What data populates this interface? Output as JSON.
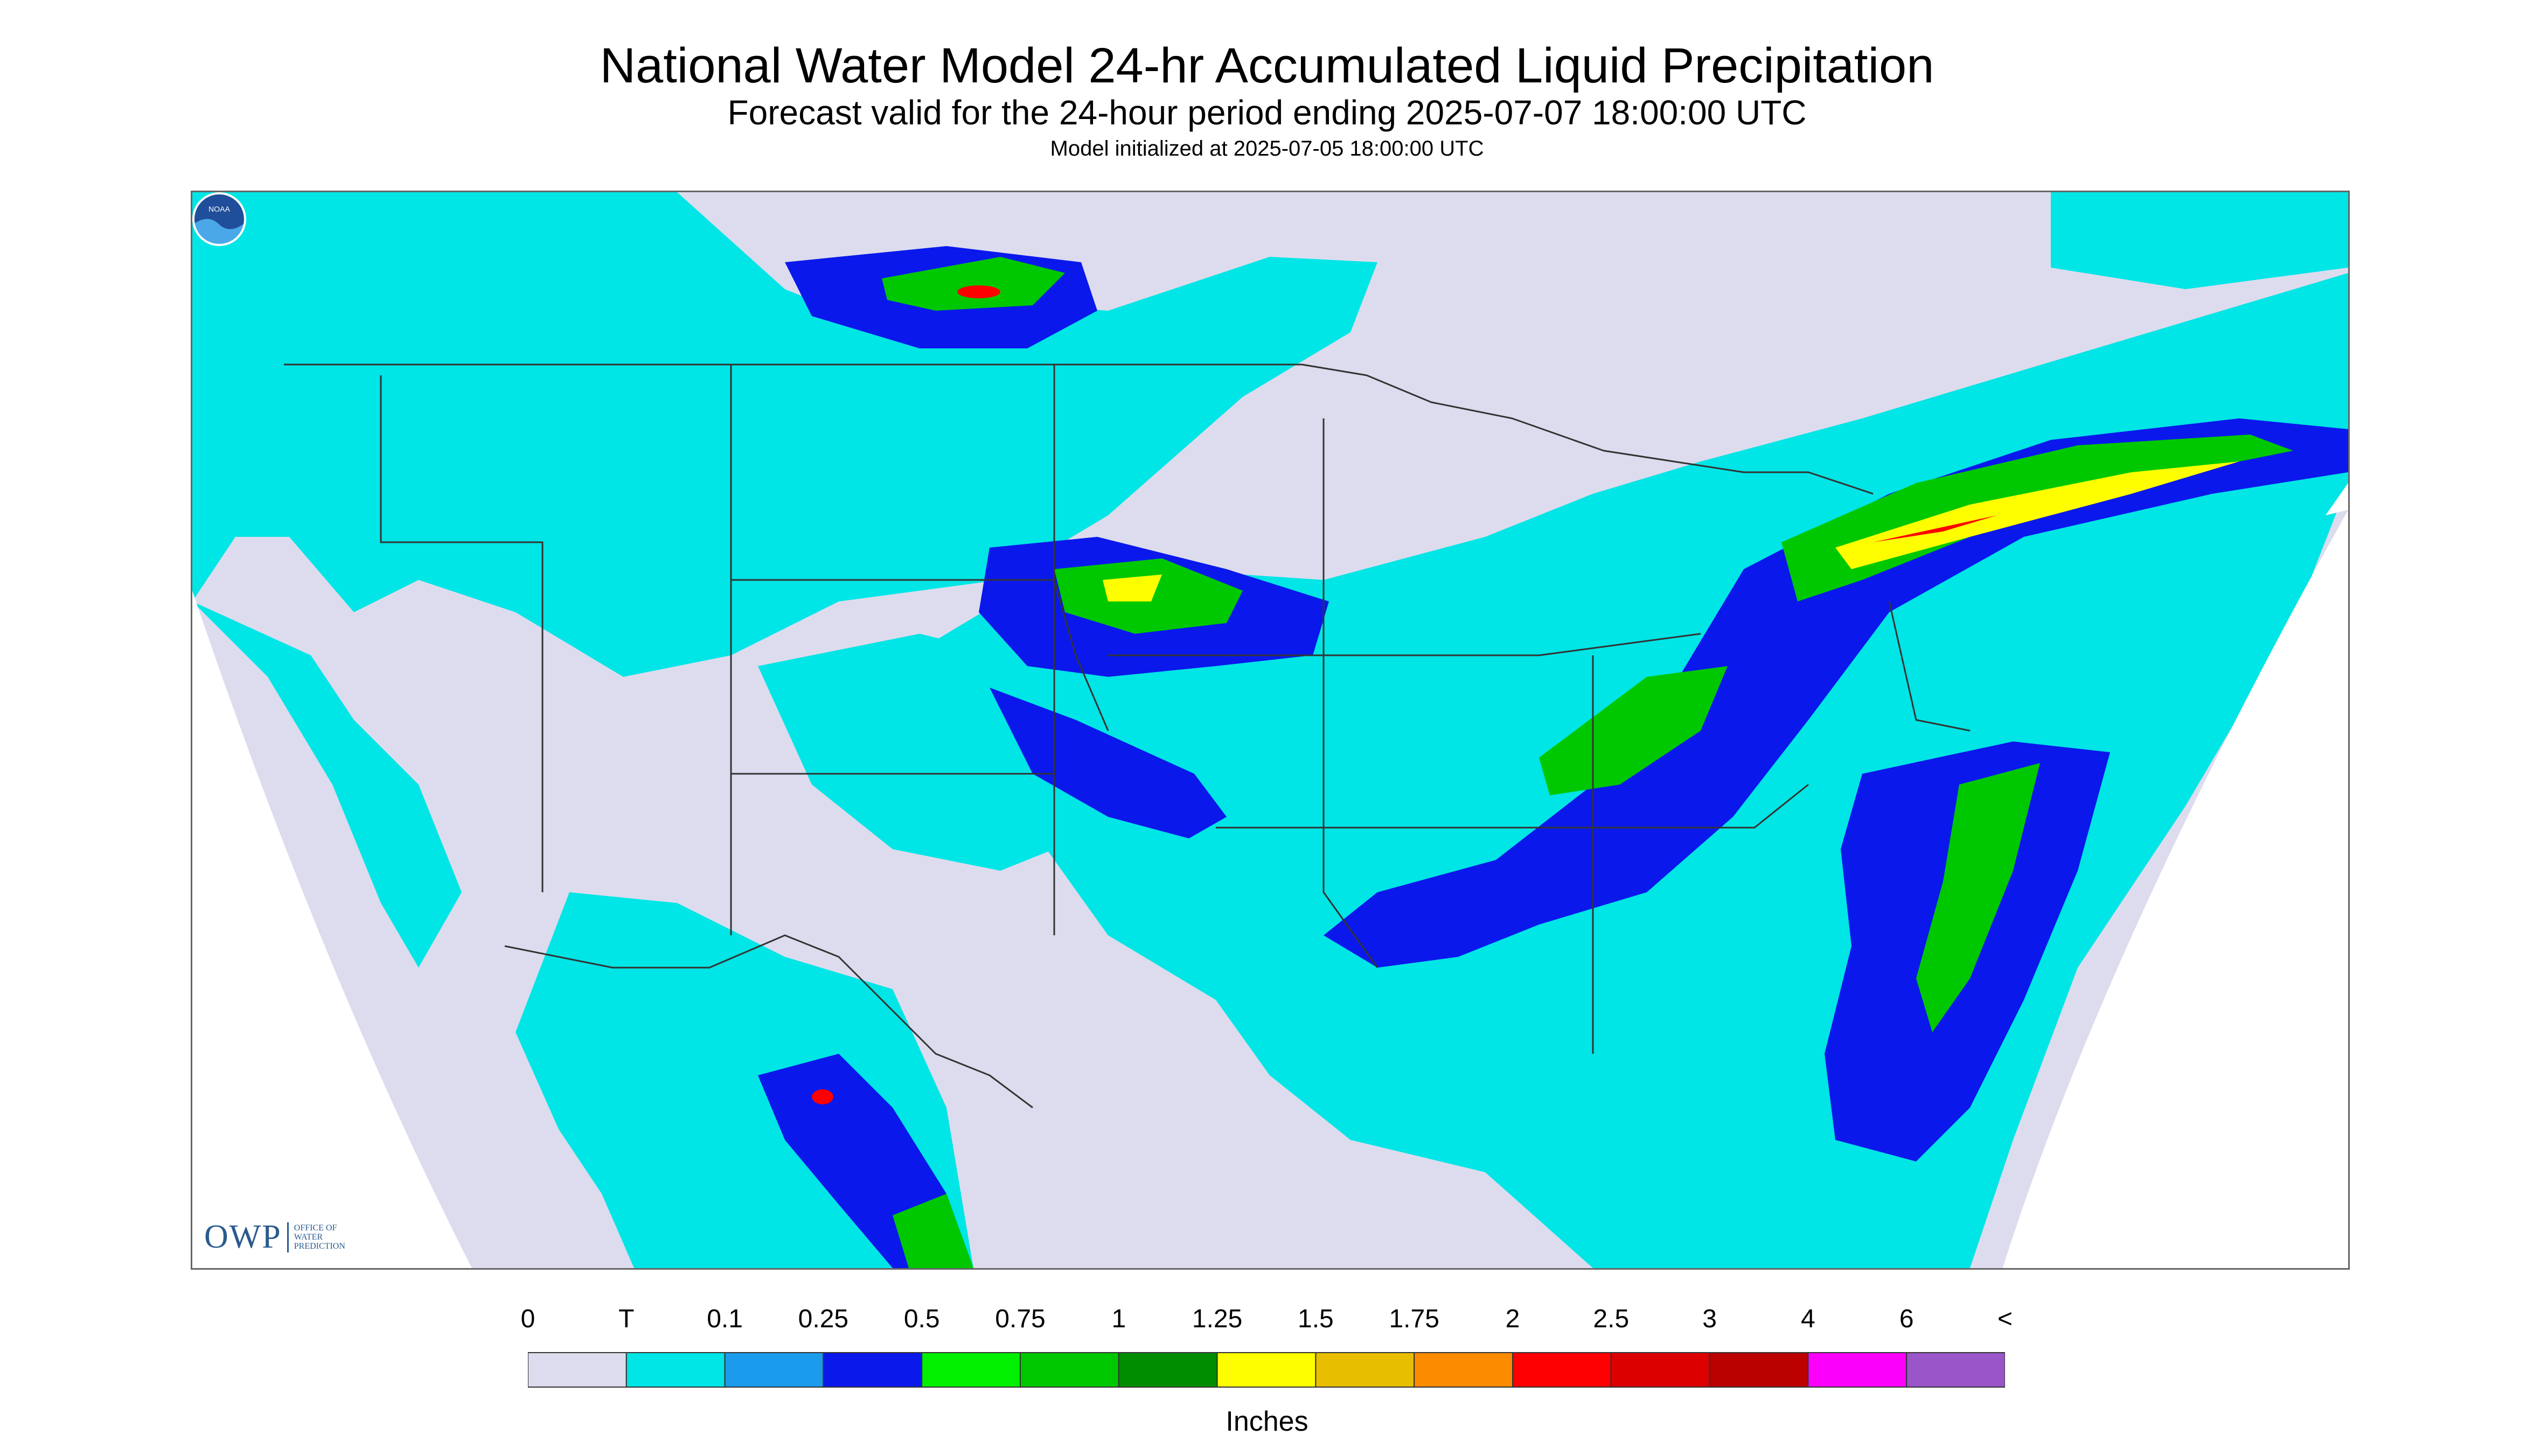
{
  "header": {
    "title": "National Water Model 24-hr Accumulated Liquid Precipitation",
    "subtitle": "Forecast valid for the 24-hour period ending 2025-07-07 18:00:00 UTC",
    "init_line": "Model initialized at 2025-07-05 18:00:00 UTC"
  },
  "logos": {
    "owp_main": "OWP",
    "owp_sub": [
      "OFFICE OF",
      "WATER",
      "PREDICTION"
    ],
    "noaa": "NOAA"
  },
  "legend": {
    "labels": [
      "0",
      "T",
      "0.1",
      "0.25",
      "0.5",
      "0.75",
      "1",
      "1.25",
      "1.5",
      "1.75",
      "2",
      "2.5",
      "3",
      "4",
      "6",
      "<"
    ],
    "colors": [
      "#dcdcee",
      "#00e5e5",
      "#1a9bec",
      "#0a18ec",
      "#00f000",
      "#00c800",
      "#008e00",
      "#fefe00",
      "#e7be00",
      "#fd8b00",
      "#fe0000",
      "#dd0000",
      "#bb0000",
      "#fb00fb",
      "#9a55c8"
    ],
    "units": "Inches"
  },
  "map": {
    "background_color": "#dcdcee",
    "no_data_color": "#ffffff",
    "boundary_color": "#333333"
  }
}
